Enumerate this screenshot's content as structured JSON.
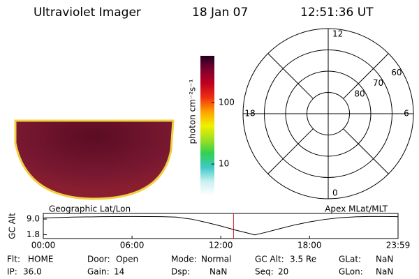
{
  "header": {
    "title": "Ultraviolet Imager",
    "date": "18 Jan 07",
    "time": "12:51:36 UT"
  },
  "colorbar": {
    "label": "photon cm⁻²s⁻¹",
    "log": true,
    "lim": [
      3.1,
      575
    ],
    "ticks": [
      10,
      100
    ],
    "colors": [
      "#ffffff",
      "#c8f0f0",
      "#40c8c8",
      "#30d050",
      "#a0e020",
      "#f0f000",
      "#ffa000",
      "#f03010",
      "#c00020",
      "#800030",
      "#200020"
    ]
  },
  "polar": {
    "mlt_ticks": [
      12,
      18,
      6,
      0
    ],
    "lat_lim": [
      90,
      50
    ],
    "lat_ticks": [
      60,
      70,
      80
    ]
  },
  "image": {
    "left_title": "Geographic Lat/Lon",
    "right_title": "Apex MLat/MLT"
  },
  "altitude": {
    "ylabel": "GC Alt",
    "ylim": [
      0,
      11.6
    ],
    "yticks": [
      {
        "value": 9,
        "label": "9.0"
      },
      1.8
    ],
    "xlim": [
      0,
      23.983
    ],
    "xticks": [
      {
        "value": 0,
        "label": "00:00"
      },
      {
        "value": 6,
        "label": "06:00"
      },
      {
        "value": 12,
        "label": "12:00"
      },
      {
        "value": 18,
        "label": "18:00"
      },
      {
        "value": 23.983,
        "label": "23:59"
      }
    ],
    "marker": 12.86,
    "x": [
      0,
      2,
      4,
      6,
      8,
      9,
      10,
      11,
      12,
      13,
      14,
      14.3,
      15,
      16,
      17,
      18,
      19,
      20,
      21,
      22,
      23,
      23.983
    ],
    "values": [
      9.5,
      9.9,
      10.1,
      10.2,
      10.1,
      9.9,
      9.0,
      7.5,
      5.8,
      3.9,
      2.2,
      1.7,
      2.8,
      4.6,
      6.3,
      7.7,
      8.8,
      9.6,
      10.0,
      10.2,
      10.2,
      10.1
    ]
  },
  "status": [
    [
      {
        "label": "Flt:",
        "value": "HOME"
      },
      {
        "label": "Door:",
        "value": "Open"
      },
      {
        "label": "Mode:",
        "value": "Normal"
      },
      {
        "label": "GC Alt:",
        "value": "3.5 Re"
      },
      {
        "label": "GLat:",
        "value": "NaN"
      }
    ],
    [
      {
        "label": "IP:",
        "value": "36.0"
      },
      {
        "label": "Gain:",
        "value": "14"
      },
      {
        "label": "Dsp:",
        "value": "NaN"
      },
      {
        "label": "Seq:",
        "value": "20"
      },
      {
        "label": "GLon:",
        "value": "NaN"
      }
    ]
  ]
}
